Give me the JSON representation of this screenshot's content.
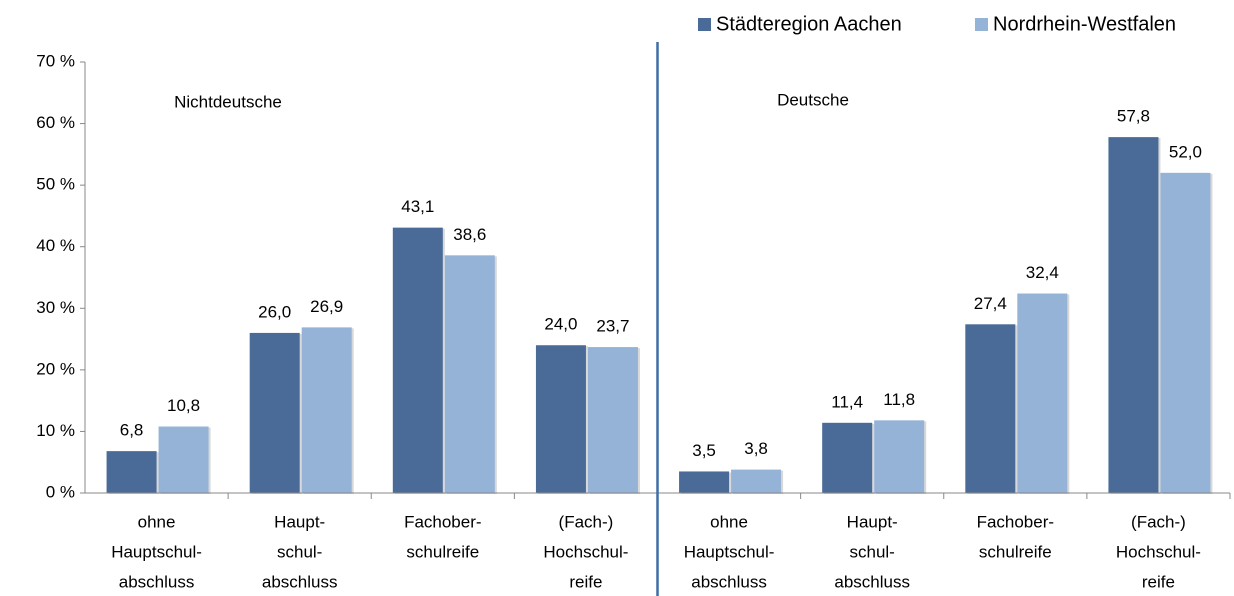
{
  "chart_data": {
    "type": "bar",
    "categories": [
      [
        "ohne",
        "Hauptschul-",
        "abschluss"
      ],
      [
        "Haupt-",
        "schul-",
        "abschluss"
      ],
      [
        "Fachober-",
        "schulreife"
      ],
      [
        "(Fach-)",
        "Hochschul-",
        "reife"
      ],
      [
        "ohne",
        "Hauptschul-",
        "abschluss"
      ],
      [
        "Haupt-",
        "schul-",
        "abschluss"
      ],
      [
        "Fachober-",
        "schulreife"
      ],
      [
        "(Fach-)",
        "Hochschul-",
        "reife"
      ]
    ],
    "series": [
      {
        "name": "Städteregion Aachen",
        "color": "#4a6b98",
        "values": [
          6.8,
          26.0,
          43.1,
          24.0,
          3.5,
          11.4,
          27.4,
          57.8
        ],
        "value_labels": [
          "6,8",
          "26,0",
          "43,1",
          "24,0",
          "3,5",
          "11,4",
          "27,4",
          "57,8"
        ]
      },
      {
        "name": "Nordrhein-Westfalen",
        "color": "#95b3d7",
        "values": [
          10.8,
          26.9,
          38.6,
          23.7,
          3.8,
          11.8,
          32.4,
          52.0
        ],
        "value_labels": [
          "10,8",
          "26,9",
          "38,6",
          "23,7",
          "3,8",
          "11,8",
          "32,4",
          "52,0"
        ]
      }
    ],
    "annotations": [
      "Nichtdeutsche",
      "Deutsche"
    ],
    "ylim": [
      0,
      70
    ],
    "yticks": [
      {
        "value": 0,
        "label": "0 %"
      },
      {
        "value": 10,
        "label": "10 %"
      },
      {
        "value": 20,
        "label": "20 %"
      },
      {
        "value": 30,
        "label": "30 %"
      },
      {
        "value": 40,
        "label": "40 %"
      },
      {
        "value": 50,
        "label": "50 %"
      },
      {
        "value": 60,
        "label": "60 %"
      },
      {
        "value": 70,
        "label": "70 %"
      }
    ],
    "legend": "top-right",
    "grid": false
  }
}
